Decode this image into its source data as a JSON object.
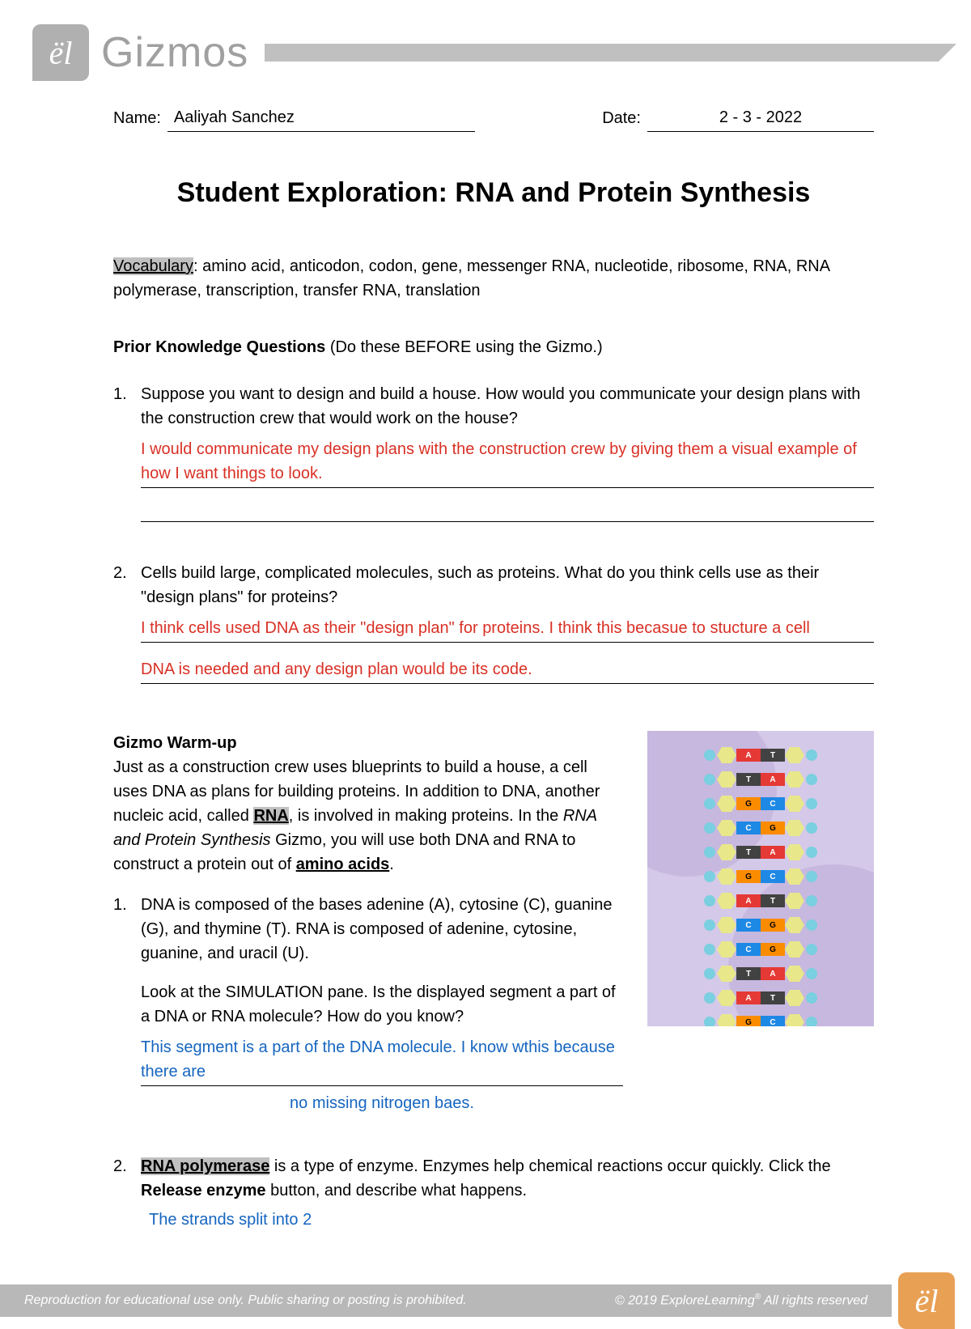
{
  "header": {
    "logo_glyph": "ël",
    "logo_text": "Gizmos"
  },
  "fields": {
    "name_label": "Name:",
    "name_value": "Aaliyah Sanchez",
    "date_label": "Date:",
    "date_value": "2 - 3 - 2022"
  },
  "title": "Student Exploration: RNA and Protein Synthesis",
  "vocab": {
    "heading": "Vocabulary",
    "text": ": amino acid, anticodon, codon, gene, messenger RNA, nucleotide, ribosome, RNA, RNA polymerase, transcription, transfer RNA, translation"
  },
  "prior": {
    "heading": "Prior Knowledge Questions ",
    "sub": "(Do these BEFORE using the Gizmo.)",
    "q1": {
      "num": "1.",
      "text": "Suppose you want to design and build a house. How would you communicate your design plans with the construction crew that would work on the house?",
      "answer": "I would communicate my design plans with the construction crew by  giving them a visual example of how I want things to look."
    },
    "q2": {
      "num": "2.",
      "text": "Cells build large, complicated molecules, such as proteins. What do you think cells use as their \"design plans\" for proteins?",
      "answer_l1": "I think cells used DNA as their \"design plan\" for proteins. I think this becasue to stucture a cell",
      "answer_l2": "DNA is needed and any design plan would be its code."
    }
  },
  "warmup": {
    "heading": "Gizmo Warm-up",
    "p_pre": "Just as a construction crew uses blueprints to build a house, a cell uses DNA as plans for building proteins. In addition to DNA, another nucleic acid, called ",
    "rna": "RNA",
    "p_mid": ", is involved in making proteins. In the ",
    "gizmo_name": "RNA and Protein Synthesis",
    "p_mid2": " Gizmo, you will use both DNA and RNA to construct a protein out of ",
    "amino": "amino acids",
    "p_end": ".",
    "q1": {
      "num": "1.",
      "text": "DNA is composed of the bases adenine (A), cytosine (C), guanine (G), and thymine (T). RNA is composed of adenine, cytosine, guanine, and uracil (U).",
      "text2": "Look at the SIMULATION pane. Is the displayed segment a part of a DNA or RNA molecule? How do you know?",
      "answer_l1": "This segment is a part of the DNA  molecule. I know wthis because there are",
      "answer_l2": "no missing nitrogen baes."
    },
    "q2": {
      "num": "2.",
      "hl": "RNA polymerase",
      "text_pre": " is a type of enzyme. Enzymes help chemical reactions occur quickly. Click the ",
      "btn": "Release enzyme",
      "text_post": " button, and describe what happens.",
      "answer": "The strands split into 2"
    }
  },
  "dna_pairs": [
    [
      "A",
      "T"
    ],
    [
      "T",
      "A"
    ],
    [
      "G",
      "C"
    ],
    [
      "C",
      "G"
    ],
    [
      "T",
      "A"
    ],
    [
      "G",
      "C"
    ],
    [
      "A",
      "T"
    ],
    [
      "C",
      "G"
    ],
    [
      "C",
      "G"
    ],
    [
      "T",
      "A"
    ],
    [
      "A",
      "T"
    ],
    [
      "G",
      "C"
    ]
  ],
  "colors": {
    "red": "#d93025",
    "blue": "#1565c0",
    "highlight": "#c0c0c0",
    "footer_logo": "#e8a055"
  },
  "footer": {
    "left": "Reproduction for educational use only. Public sharing or posting is prohibited.",
    "right_pre": "© 2019 ExploreLearning",
    "right_post": "  All rights reserved",
    "logo_glyph": "ël"
  }
}
